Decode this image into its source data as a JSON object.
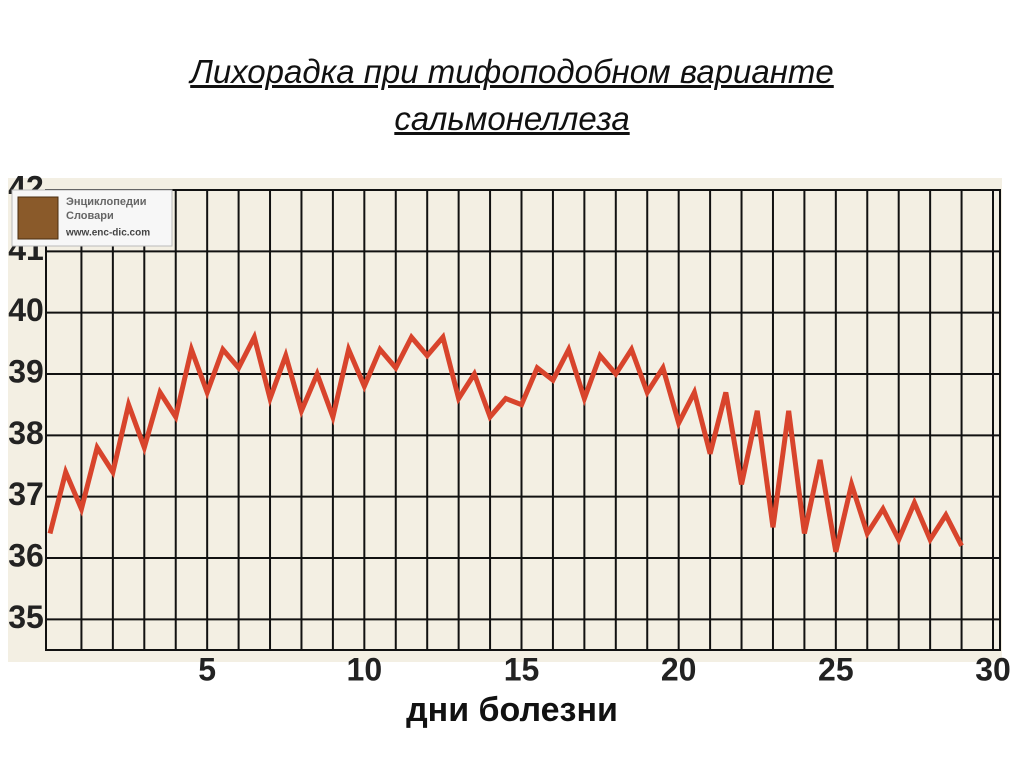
{
  "chart_data": {
    "type": "line",
    "title": "Лихорадка при тифоподобном варианте сальмонеллеза",
    "x_label": "дни болезни",
    "watermark": [
      "Энциклопедии",
      "Словари",
      "www.enc-dic.com"
    ],
    "x": [
      0,
      0.5,
      1,
      1.5,
      2,
      2.5,
      3,
      3.5,
      4,
      4.5,
      5,
      5.5,
      6,
      6.5,
      7,
      7.5,
      8,
      8.5,
      9,
      9.5,
      10,
      10.5,
      11,
      11.5,
      12,
      12.5,
      13,
      13.5,
      14,
      14.5,
      15,
      15.5,
      16,
      16.5,
      17,
      17.5,
      18,
      18.5,
      19,
      19.5,
      20,
      20.5,
      21,
      21.5,
      22,
      22.5,
      23,
      23.5,
      24,
      24.5,
      25,
      25.5,
      26,
      26.5,
      27,
      27.5,
      28,
      28.5,
      29
    ],
    "series": [
      {
        "color": "#d8442c",
        "values": [
          36.4,
          37.4,
          36.8,
          37.8,
          37.4,
          38.5,
          37.8,
          38.7,
          38.3,
          39.4,
          38.7,
          39.4,
          39.1,
          39.6,
          38.6,
          39.3,
          38.4,
          39.0,
          38.3,
          39.4,
          38.8,
          39.4,
          39.1,
          39.6,
          39.3,
          39.6,
          38.6,
          39.0,
          38.3,
          38.6,
          38.5,
          39.1,
          38.9,
          39.4,
          38.6,
          39.3,
          39.0,
          39.4,
          38.7,
          39.1,
          38.2,
          38.7,
          37.7,
          38.7,
          37.2,
          38.4,
          36.5,
          38.4,
          36.4,
          37.6,
          36.1,
          37.2,
          36.4,
          36.8,
          36.3,
          36.9,
          36.3,
          36.7,
          36.2
        ]
      }
    ],
    "xlim": [
      0,
      30
    ],
    "xticks": [
      5,
      10,
      15,
      20,
      25,
      30
    ],
    "x_grid_step": 1,
    "ylim": [
      34.5,
      42
    ],
    "yticks": [
      35,
      36,
      37,
      38,
      39,
      40,
      41,
      42
    ],
    "grid": true
  }
}
